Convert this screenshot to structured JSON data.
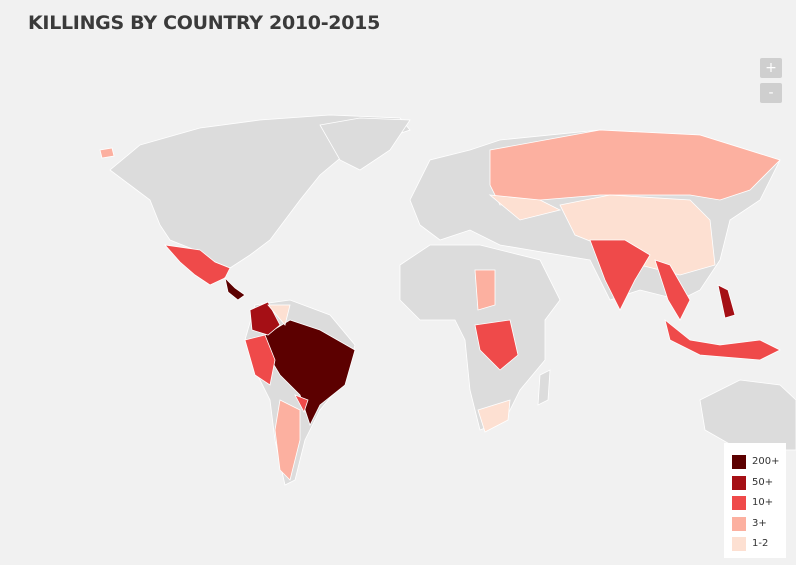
{
  "header": {
    "title": "KILLINGS BY COUNTRY 2010-2015"
  },
  "controls": {
    "zoom_in": "+",
    "zoom_out": "-"
  },
  "legend": {
    "items": [
      {
        "label": "200+",
        "color": "#5c0000"
      },
      {
        "label": "50+",
        "color": "#a50f15"
      },
      {
        "label": "10+",
        "color": "#ef4a4a"
      },
      {
        "label": "3+",
        "color": "#fcb0a0"
      },
      {
        "label": "1-2",
        "color": "#fde0d2"
      }
    ]
  }
}
